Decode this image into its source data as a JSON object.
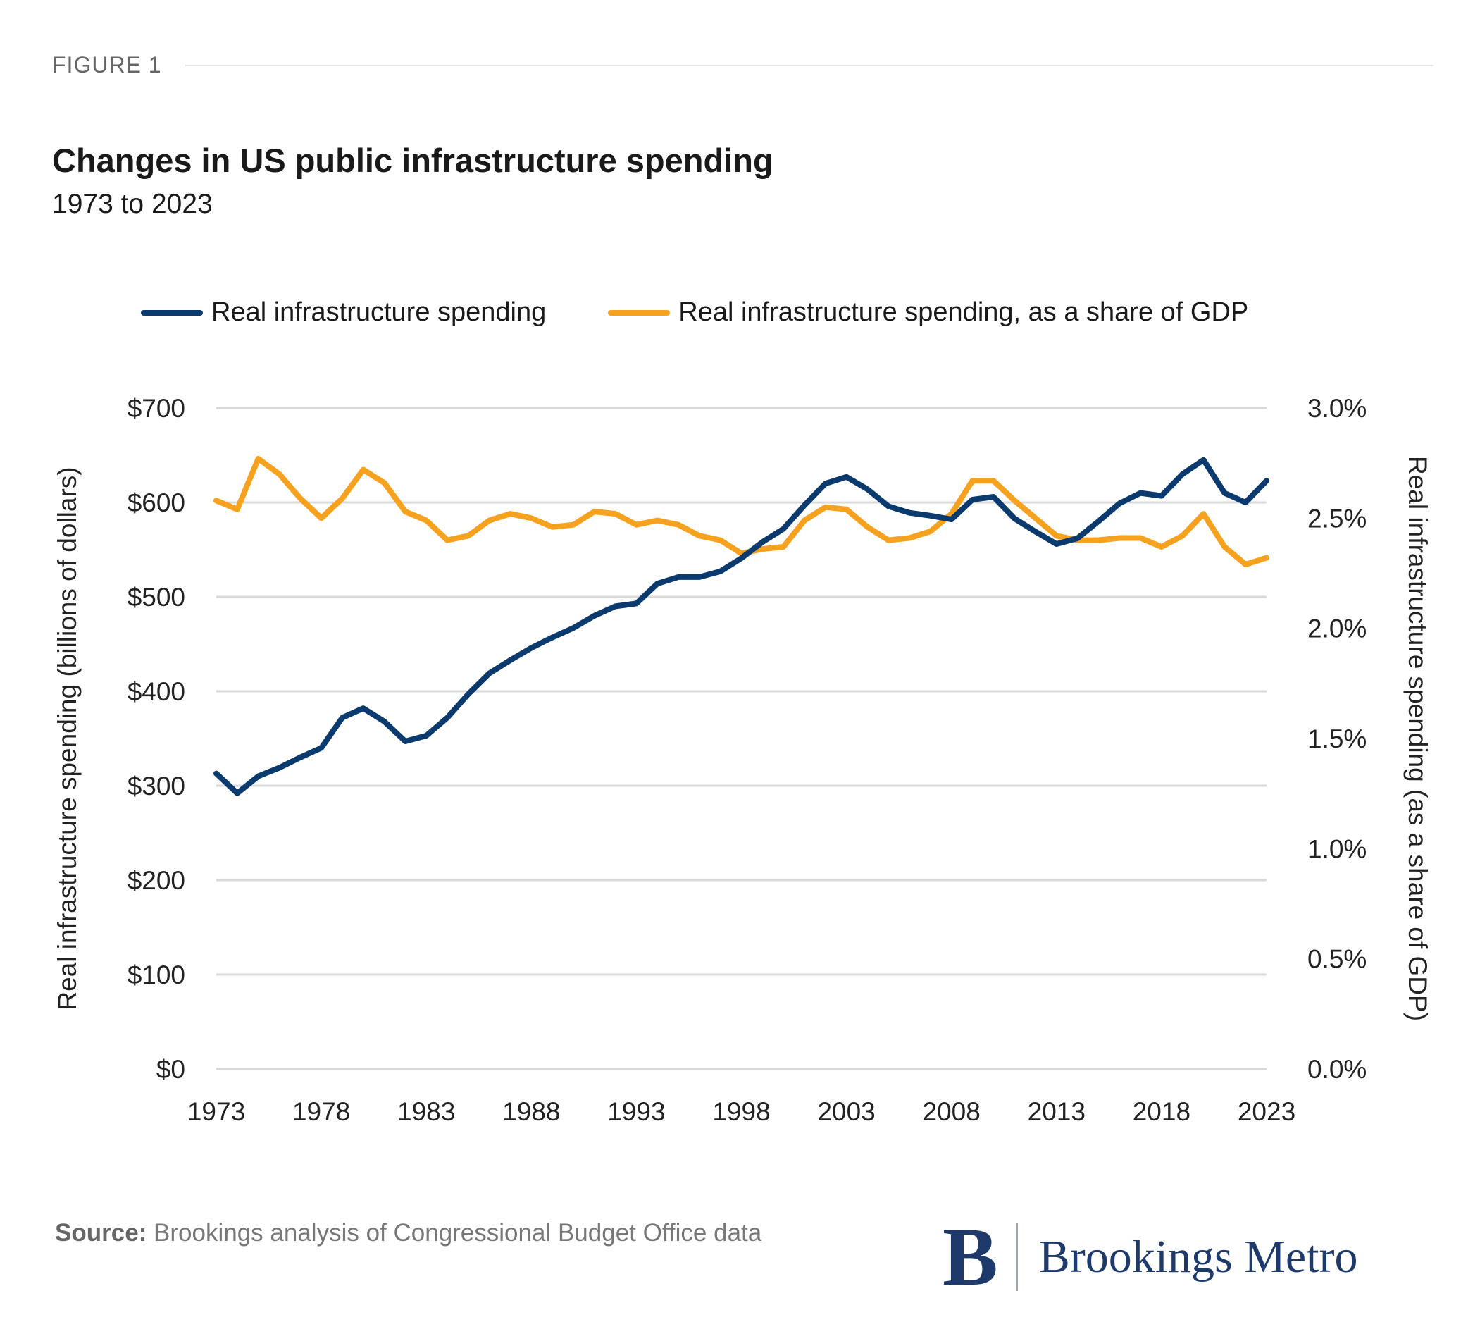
{
  "figure_label": "FIGURE 1",
  "source": {
    "label": "Source:",
    "text": " Brookings analysis of Congressional Budget Office data"
  },
  "logo": {
    "mark": "B",
    "name": "Brookings Metro"
  },
  "colors": {
    "spending": "#0b3a6e",
    "share": "#f7a21e",
    "grid": "#d9d9d9"
  },
  "chart_data": {
    "type": "line",
    "title": "Changes in US public infrastructure spending",
    "subtitle": "1973 to 2023",
    "ylabel": "Real infrastructure spending (billions of dollars)",
    "y2label": "Real infrastructure spending (as a share of GDP)",
    "xlim": [
      1973,
      2023
    ],
    "ylim": [
      0,
      700
    ],
    "y2lim": [
      0,
      3.0
    ],
    "grid": true,
    "legend_placement": "top",
    "x_ticks": [
      "1973",
      "1978",
      "1983",
      "1988",
      "1993",
      "1998",
      "2003",
      "2008",
      "2013",
      "2018",
      "2023"
    ],
    "y_ticks": [
      "$0",
      "$100",
      "$200",
      "$300",
      "$400",
      "$500",
      "$600",
      "$700"
    ],
    "y2_ticks": [
      "0.0%",
      "0.5%",
      "1.0%",
      "1.5%",
      "2.0%",
      "2.5%",
      "3.0%"
    ],
    "x": [
      1973,
      1974,
      1975,
      1976,
      1977,
      1978,
      1979,
      1980,
      1981,
      1982,
      1983,
      1984,
      1985,
      1986,
      1987,
      1988,
      1989,
      1990,
      1991,
      1992,
      1993,
      1994,
      1995,
      1996,
      1997,
      1998,
      1999,
      2000,
      2001,
      2002,
      2003,
      2004,
      2005,
      2006,
      2007,
      2008,
      2009,
      2010,
      2011,
      2012,
      2013,
      2014,
      2015,
      2016,
      2017,
      2018,
      2019,
      2020,
      2021,
      2022,
      2023
    ],
    "series": [
      {
        "name": "Real infrastructure spending",
        "axis": "left",
        "values": [
          313,
          292,
          310,
          319,
          330,
          340,
          372,
          382,
          368,
          347,
          353,
          372,
          397,
          419,
          433,
          446,
          457,
          467,
          480,
          490,
          493,
          514,
          521,
          521,
          527,
          541,
          558,
          572,
          597,
          620,
          627,
          614,
          596,
          589,
          586,
          582,
          603,
          606,
          583,
          569,
          556,
          562,
          580,
          599,
          610,
          607,
          630,
          645,
          610,
          600,
          623
        ]
      },
      {
        "name": "Real infrastructure spending, as a share of GDP",
        "axis": "right",
        "values": [
          2.58,
          2.54,
          2.77,
          2.7,
          2.59,
          2.5,
          2.59,
          2.72,
          2.66,
          2.53,
          2.49,
          2.4,
          2.42,
          2.49,
          2.52,
          2.5,
          2.46,
          2.47,
          2.53,
          2.52,
          2.47,
          2.49,
          2.47,
          2.42,
          2.4,
          2.34,
          2.36,
          2.37,
          2.49,
          2.55,
          2.54,
          2.46,
          2.4,
          2.41,
          2.44,
          2.52,
          2.67,
          2.67,
          2.58,
          2.5,
          2.42,
          2.4,
          2.4,
          2.41,
          2.41,
          2.37,
          2.42,
          2.52,
          2.37,
          2.29,
          2.32
        ]
      }
    ]
  }
}
